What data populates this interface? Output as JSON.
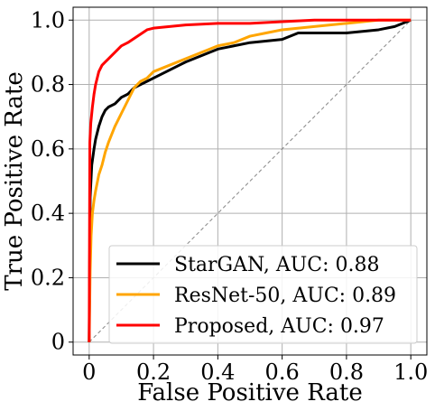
{
  "chart_data": {
    "type": "line",
    "xlabel": "False Positive Rate",
    "ylabel": "True Positive Rate",
    "xlim": [
      -0.05,
      1.05
    ],
    "ylim": [
      -0.04,
      1.04
    ],
    "xticks": [
      0,
      0.2,
      0.4,
      0.6,
      0.8,
      1.0
    ],
    "yticks": [
      0,
      0.2,
      0.4,
      0.6,
      0.8,
      1.0
    ],
    "xtick_labels": [
      "0",
      "0.2",
      "0.4",
      "0.6",
      "0.8",
      "1.0"
    ],
    "ytick_labels": [
      "0",
      "0.2",
      "0.4",
      "0.6",
      "0.8",
      "1.0"
    ],
    "grid": true,
    "legend_position": "lower-right",
    "series": [
      {
        "name": "StarGAN, AUC: 0.88",
        "color": "#000000",
        "x": [
          0,
          0.003,
          0.008,
          0.015,
          0.02,
          0.03,
          0.04,
          0.05,
          0.06,
          0.08,
          0.1,
          0.12,
          0.14,
          0.16,
          0.18,
          0.2,
          0.24,
          0.28,
          0.3,
          0.35,
          0.4,
          0.45,
          0.5,
          0.6,
          0.65,
          0.7,
          0.8,
          0.9,
          0.95,
          1.0
        ],
        "y": [
          0,
          0.45,
          0.55,
          0.6,
          0.63,
          0.67,
          0.7,
          0.72,
          0.73,
          0.74,
          0.76,
          0.77,
          0.79,
          0.8,
          0.81,
          0.82,
          0.84,
          0.86,
          0.87,
          0.89,
          0.91,
          0.92,
          0.93,
          0.94,
          0.96,
          0.96,
          0.96,
          0.97,
          0.98,
          1.0
        ]
      },
      {
        "name": "ResNet-50, AUC: 0.89",
        "color": "#ffa500",
        "x": [
          0,
          0.003,
          0.006,
          0.01,
          0.015,
          0.02,
          0.03,
          0.04,
          0.05,
          0.06,
          0.08,
          0.1,
          0.12,
          0.14,
          0.16,
          0.18,
          0.2,
          0.25,
          0.3,
          0.35,
          0.4,
          0.45,
          0.5,
          0.55,
          0.6,
          0.7,
          0.8,
          0.9,
          1.0
        ],
        "y": [
          0,
          0.22,
          0.33,
          0.4,
          0.44,
          0.47,
          0.52,
          0.55,
          0.59,
          0.62,
          0.67,
          0.71,
          0.75,
          0.79,
          0.81,
          0.82,
          0.84,
          0.86,
          0.88,
          0.9,
          0.92,
          0.93,
          0.95,
          0.96,
          0.97,
          0.98,
          0.99,
          1.0,
          1.0
        ]
      },
      {
        "name": "Proposed, AUC: 0.97",
        "color": "#ff0000",
        "x": [
          0,
          0.002,
          0.005,
          0.01,
          0.015,
          0.02,
          0.03,
          0.04,
          0.05,
          0.06,
          0.08,
          0.1,
          0.12,
          0.15,
          0.18,
          0.2,
          0.25,
          0.3,
          0.4,
          0.5,
          0.6,
          0.7,
          0.8,
          0.9,
          1.0
        ],
        "y": [
          0,
          0.62,
          0.68,
          0.73,
          0.77,
          0.8,
          0.84,
          0.86,
          0.87,
          0.88,
          0.9,
          0.92,
          0.93,
          0.95,
          0.97,
          0.975,
          0.98,
          0.985,
          0.99,
          0.99,
          0.995,
          1.0,
          1.0,
          1.0,
          1.0
        ]
      }
    ],
    "reference_line": {
      "x": [
        0,
        1
      ],
      "y": [
        0,
        1
      ],
      "color": "#888888",
      "style": "dashed"
    }
  }
}
